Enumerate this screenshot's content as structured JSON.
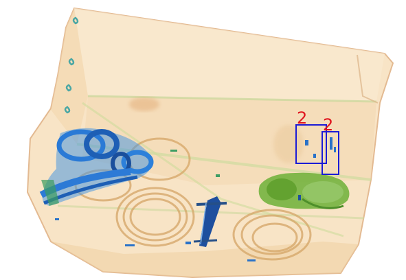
{
  "image": {
    "kind": "x-ray baggage scan",
    "colors": {
      "background": "#ffffff",
      "bag_fill": "#f6dcb4",
      "bag_edge": "#d9a878",
      "organic_orange": "#e7b57e",
      "metal_blue": "#2f7fd8",
      "metal_dark": "#1d4f9e",
      "inorganic_green": "#6fb23c",
      "inorganic_green_light": "#a9d37a",
      "detection_box": "#1b1bd6",
      "detection_label": "#e0141e"
    }
  },
  "detections": [
    {
      "label": "2"
    },
    {
      "label": "2"
    }
  ]
}
